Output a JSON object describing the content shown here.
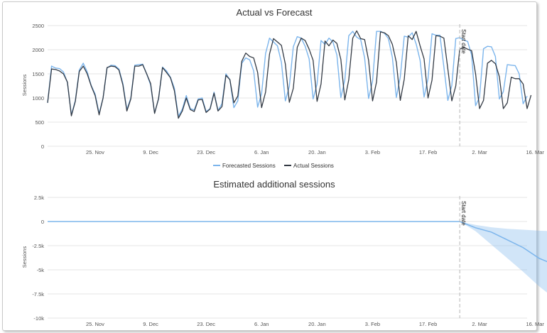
{
  "chart_data": [
    {
      "type": "line",
      "title": "Actual vs Forecast",
      "ylabel": "Sessions",
      "xlabel": "",
      "ylim": [
        0,
        2500
      ],
      "yticks": [
        0,
        500,
        1000,
        1500,
        2000,
        2500
      ],
      "ytick_labels": [
        "0",
        "500",
        "1000",
        "1500",
        "2000",
        "2500"
      ],
      "x_start": "2018-11-13",
      "x_ticks": [
        "25. Nov",
        "9. Dec",
        "23. Dec",
        "6. Jan",
        "20. Jan",
        "3. Feb",
        "17. Feb",
        "2. Mar",
        "16. Mar"
      ],
      "x_tick_dates": [
        "2018-11-25",
        "2018-12-09",
        "2018-12-23",
        "2019-01-06",
        "2019-01-20",
        "2019-02-03",
        "2019-02-17",
        "2019-03-02",
        "2019-03-16"
      ],
      "start_date": "2019-02-25",
      "start_date_label": "Start date",
      "grid": true,
      "legend_position": "bottom",
      "series": [
        {
          "name": "Forecasted Sessions",
          "color": "#7cb5ec",
          "values": [
            900,
            1660,
            1620,
            1610,
            1540,
            1320,
            650,
            950,
            1580,
            1720,
            1540,
            1260,
            1080,
            680,
            1000,
            1620,
            1680,
            1670,
            1600,
            1300,
            760,
            1000,
            1680,
            1690,
            1700,
            1500,
            1270,
            690,
            980,
            1640,
            1560,
            1430,
            1200,
            620,
            770,
            1050,
            780,
            750,
            980,
            1000,
            720,
            780,
            1120,
            740,
            880,
            1500,
            1380,
            800,
            940,
            1720,
            1830,
            1790,
            1560,
            810,
            1090,
            1920,
            2240,
            2160,
            2080,
            1740,
            940,
            1240,
            2060,
            2270,
            2240,
            2070,
            1810,
            980,
            1290,
            2190,
            2110,
            2240,
            2160,
            1890,
            1010,
            1370,
            2290,
            2380,
            2260,
            2210,
            1830,
            990,
            1350,
            2380,
            2380,
            2340,
            2230,
            1840,
            1010,
            1440,
            2280,
            2260,
            2350,
            2120,
            1780,
            1020,
            1400,
            2330,
            2300,
            2300,
            1640,
            950,
            1260,
            2230,
            2250,
            2200,
            2170,
            1890,
            840,
            1020,
            2020,
            2070,
            2060,
            1860,
            980,
            1130,
            1690,
            1680,
            1670,
            1500,
            880,
            1040
          ],
          "estimated": true
        },
        {
          "name": "Actual Sessions",
          "color": "#333a44",
          "values": [
            900,
            1600,
            1590,
            1560,
            1500,
            1330,
            630,
            930,
            1550,
            1660,
            1500,
            1250,
            1050,
            650,
            1000,
            1630,
            1660,
            1650,
            1580,
            1270,
            730,
            980,
            1660,
            1660,
            1690,
            1500,
            1300,
            680,
            990,
            1630,
            1530,
            1420,
            1150,
            580,
            730,
            1000,
            760,
            720,
            960,
            970,
            700,
            770,
            1100,
            730,
            820,
            1470,
            1380,
            900,
            1040,
            1760,
            1930,
            1860,
            1830,
            1530,
            800,
            1120,
            1910,
            2230,
            2160,
            2090,
            1700,
            910,
            1200,
            2050,
            2240,
            2190,
            2010,
            1780,
            930,
            1290,
            2180,
            2080,
            2200,
            2130,
            1800,
            960,
            1380,
            2240,
            2390,
            2230,
            2210,
            1780,
            940,
            1330,
            2370,
            2350,
            2290,
            2110,
            1740,
            950,
            1390,
            2290,
            2210,
            2380,
            2080,
            1810,
            1000,
            1370,
            2290,
            2280,
            2240,
            1600,
            940,
            1250,
            2010,
            2050,
            2010,
            1980,
            1500,
            780,
            950,
            1720,
            1780,
            1710,
            1440,
            780,
            900,
            1430,
            1400,
            1400,
            1290,
            780,
            1060
          ],
          "estimated": true
        }
      ]
    },
    {
      "type": "area",
      "title": "Estimated additional sessions",
      "ylabel": "Sessions",
      "xlabel": "",
      "ylim": [
        -10000,
        2500
      ],
      "yticks": [
        2500,
        0,
        -2500,
        -5000,
        -7500,
        -10000
      ],
      "ytick_labels": [
        "2.5k",
        "0",
        "-2.5k",
        "-5k",
        "-7.5k",
        "-10k"
      ],
      "x_ticks": [
        "25. Nov",
        "9. Dec",
        "23. Dec",
        "6. Jan",
        "20. Jan",
        "3. Feb",
        "17. Feb",
        "2. Mar",
        "16. Mar"
      ],
      "start_date_label": "Start date",
      "grid": true,
      "series": [
        {
          "name": "",
          "color": "#7cb5ec",
          "x": [
            "2018-11-13",
            "2019-02-25",
            "2019-03-01",
            "2019-03-05",
            "2019-03-09",
            "2019-03-13",
            "2019-03-17",
            "2019-03-21",
            "2019-03-24"
          ],
          "values": [
            0,
            0,
            -650,
            -1100,
            -1900,
            -2700,
            -3800,
            -4500,
            -4950
          ],
          "band_low": [
            0,
            0,
            -1000,
            -2400,
            -3800,
            -5200,
            -6700,
            -8000,
            -8800
          ],
          "band_high": [
            0,
            0,
            -350,
            -600,
            -750,
            -850,
            -950,
            -1000,
            -1100
          ],
          "estimated": true
        }
      ]
    }
  ]
}
